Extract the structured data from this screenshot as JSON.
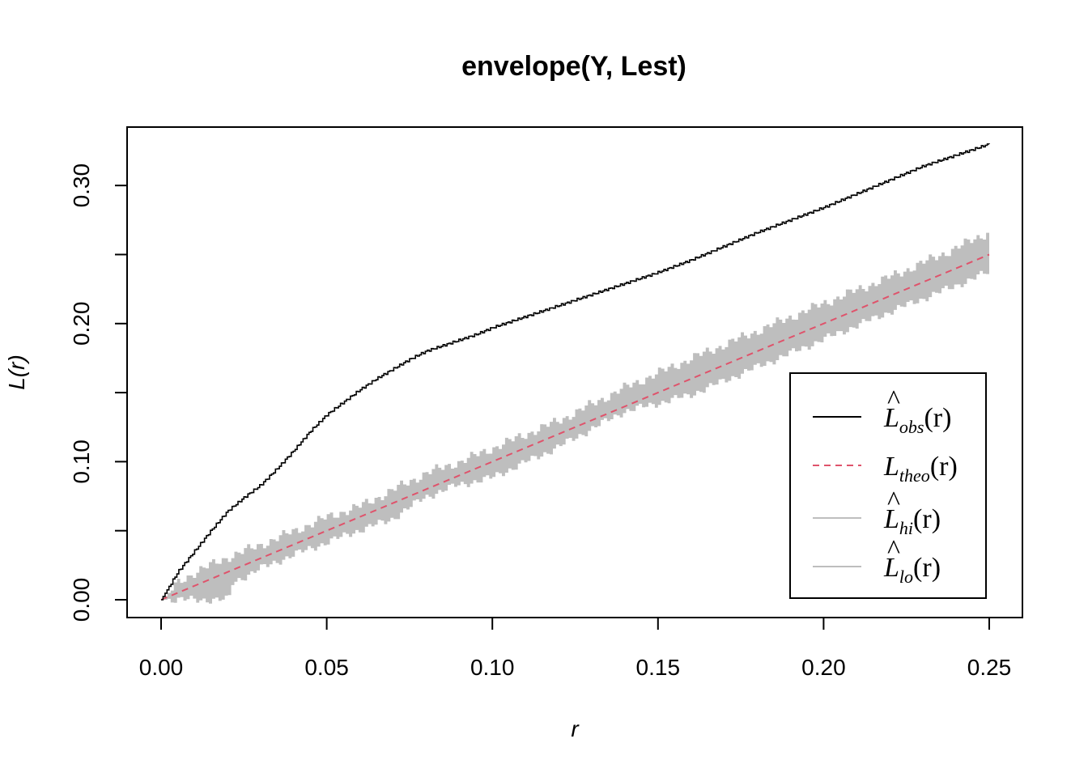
{
  "chart_data": {
    "type": "line",
    "title": "envelope(Y, Lest)",
    "xlabel": "r",
    "ylabel": "L(r)",
    "xlim": [
      0,
      0.25
    ],
    "ylim": [
      0,
      0.33
    ],
    "x_ticks": [
      "0.00",
      "0.05",
      "0.10",
      "0.15",
      "0.20",
      "0.25"
    ],
    "y_ticks": [
      "0.00",
      "0.10",
      "0.20",
      "0.30"
    ],
    "grid": false,
    "legend_position": "bottom-right",
    "legend": [
      {
        "base": "L",
        "hat": true,
        "sub": "obs",
        "suffix": "(r)",
        "color": "#000000",
        "dash": "solid"
      },
      {
        "base": "L",
        "hat": false,
        "sub": "theo",
        "suffix": "(r)",
        "color": "#DF536B",
        "dash": "dashed"
      },
      {
        "base": "L",
        "hat": true,
        "sub": "hi",
        "suffix": "(r)",
        "color": "#BEBEBE",
        "dash": "solid"
      },
      {
        "base": "L",
        "hat": true,
        "sub": "lo",
        "suffix": "(r)",
        "color": "#BEBEBE",
        "dash": "solid"
      }
    ],
    "series": [
      {
        "name": "obs",
        "color": "#000000",
        "x": [
          0,
          0.002,
          0.005,
          0.01,
          0.015,
          0.02,
          0.025,
          0.03,
          0.035,
          0.04,
          0.045,
          0.05,
          0.055,
          0.06,
          0.065,
          0.07,
          0.075,
          0.08,
          0.085,
          0.09,
          0.095,
          0.1,
          0.11,
          0.12,
          0.13,
          0.14,
          0.15,
          0.16,
          0.17,
          0.18,
          0.19,
          0.2,
          0.21,
          0.22,
          0.23,
          0.24,
          0.25
        ],
        "y": [
          0,
          0.008,
          0.02,
          0.035,
          0.05,
          0.064,
          0.074,
          0.083,
          0.095,
          0.108,
          0.122,
          0.134,
          0.143,
          0.152,
          0.16,
          0.167,
          0.174,
          0.18,
          0.184,
          0.188,
          0.192,
          0.197,
          0.205,
          0.213,
          0.221,
          0.229,
          0.237,
          0.246,
          0.256,
          0.266,
          0.275,
          0.284,
          0.294,
          0.304,
          0.314,
          0.322,
          0.33
        ]
      },
      {
        "name": "theo",
        "color": "#DF536B",
        "x": [
          0,
          0.25
        ],
        "y": [
          0,
          0.25
        ]
      },
      {
        "name": "hi",
        "color": "#BEBEBE",
        "x": [
          0,
          0.005,
          0.01,
          0.02,
          0.03,
          0.04,
          0.05,
          0.06,
          0.07,
          0.08,
          0.09,
          0.1,
          0.12,
          0.14,
          0.16,
          0.18,
          0.2,
          0.22,
          0.24,
          0.25
        ],
        "y": [
          0,
          0.013,
          0.02,
          0.031,
          0.04,
          0.05,
          0.06,
          0.068,
          0.08,
          0.092,
          0.1,
          0.11,
          0.13,
          0.154,
          0.175,
          0.195,
          0.215,
          0.234,
          0.255,
          0.267
        ]
      },
      {
        "name": "lo",
        "color": "#BEBEBE",
        "x": [
          0,
          0.005,
          0.01,
          0.015,
          0.02,
          0.021,
          0.022,
          0.03,
          0.04,
          0.05,
          0.06,
          0.07,
          0.08,
          0.09,
          0.1,
          0.12,
          0.14,
          0.16,
          0.18,
          0.2,
          0.22,
          0.24,
          0.25
        ],
        "y": [
          0,
          0,
          0,
          0,
          0,
          0,
          0.012,
          0.022,
          0.032,
          0.041,
          0.05,
          0.058,
          0.074,
          0.083,
          0.088,
          0.11,
          0.136,
          0.148,
          0.168,
          0.188,
          0.208,
          0.227,
          0.237
        ]
      }
    ]
  }
}
